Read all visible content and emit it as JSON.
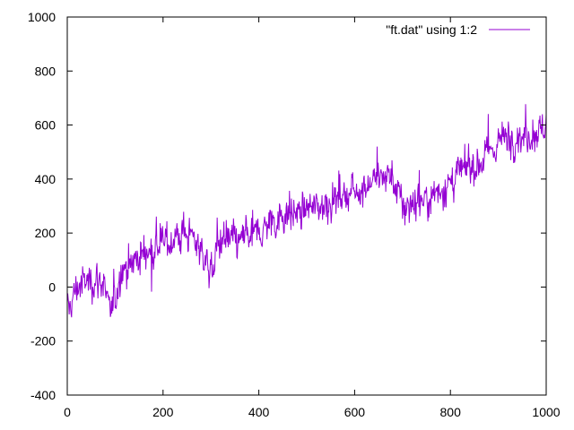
{
  "chart_data": {
    "type": "line",
    "title": "",
    "xlabel": "",
    "ylabel": "",
    "xlim": [
      0,
      1000
    ],
    "ylim": [
      -400,
      1000
    ],
    "x_ticks": [
      "0",
      "200",
      "400",
      "600",
      "800",
      "1000"
    ],
    "y_ticks": [
      "-400",
      "-200",
      "0",
      "200",
      "400",
      "600",
      "800",
      "1000"
    ],
    "grid": false,
    "legend_position": "top-right",
    "series": [
      {
        "name": "\"ft.dat\" using 1:2",
        "color": "#9400d3",
        "x_range": [
          0,
          1000
        ],
        "trend_points": [
          [
            0,
            -100
          ],
          [
            20,
            0
          ],
          [
            40,
            20
          ],
          [
            60,
            30
          ],
          [
            75,
            20
          ],
          [
            90,
            -110
          ],
          [
            100,
            -60
          ],
          [
            110,
            60
          ],
          [
            130,
            90
          ],
          [
            150,
            110
          ],
          [
            175,
            140
          ],
          [
            200,
            160
          ],
          [
            225,
            180
          ],
          [
            250,
            200
          ],
          [
            275,
            160
          ],
          [
            290,
            90
          ],
          [
            300,
            60
          ],
          [
            320,
            180
          ],
          [
            350,
            160
          ],
          [
            375,
            190
          ],
          [
            400,
            200
          ],
          [
            425,
            240
          ],
          [
            450,
            270
          ],
          [
            475,
            270
          ],
          [
            500,
            290
          ],
          [
            525,
            300
          ],
          [
            550,
            320
          ],
          [
            575,
            340
          ],
          [
            600,
            360
          ],
          [
            625,
            380
          ],
          [
            650,
            400
          ],
          [
            675,
            420
          ],
          [
            700,
            300
          ],
          [
            725,
            310
          ],
          [
            750,
            330
          ],
          [
            775,
            360
          ],
          [
            800,
            380
          ],
          [
            825,
            430
          ],
          [
            850,
            450
          ],
          [
            875,
            480
          ],
          [
            900,
            540
          ],
          [
            925,
            560
          ],
          [
            950,
            560
          ],
          [
            975,
            570
          ],
          [
            1000,
            600
          ]
        ],
        "noise_amplitude": 60
      }
    ]
  }
}
